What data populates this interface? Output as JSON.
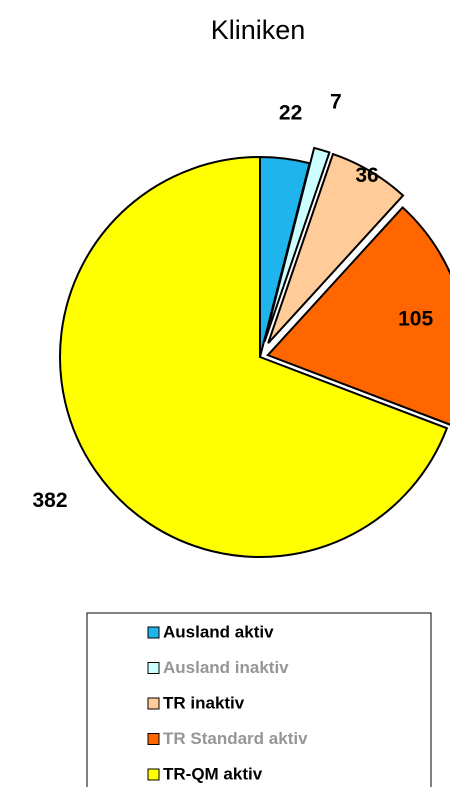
{
  "chart_data": {
    "type": "pie",
    "title": "Kliniken",
    "categories": [
      "Ausland aktiv",
      "Ausland inaktiv",
      "TR inaktiv",
      "TR Standard aktiv",
      "TR-QM aktiv"
    ],
    "values": [
      22,
      7,
      36,
      105,
      382
    ],
    "colors": [
      "#1fb4ec",
      "#ccffff",
      "#ffcc99",
      "#ff6600",
      "#ffff00"
    ],
    "exploded": [
      false,
      true,
      true,
      true,
      false
    ],
    "legend_text_colors": [
      "#000000",
      "#969696",
      "#000000",
      "#969696",
      "#000000"
    ]
  }
}
